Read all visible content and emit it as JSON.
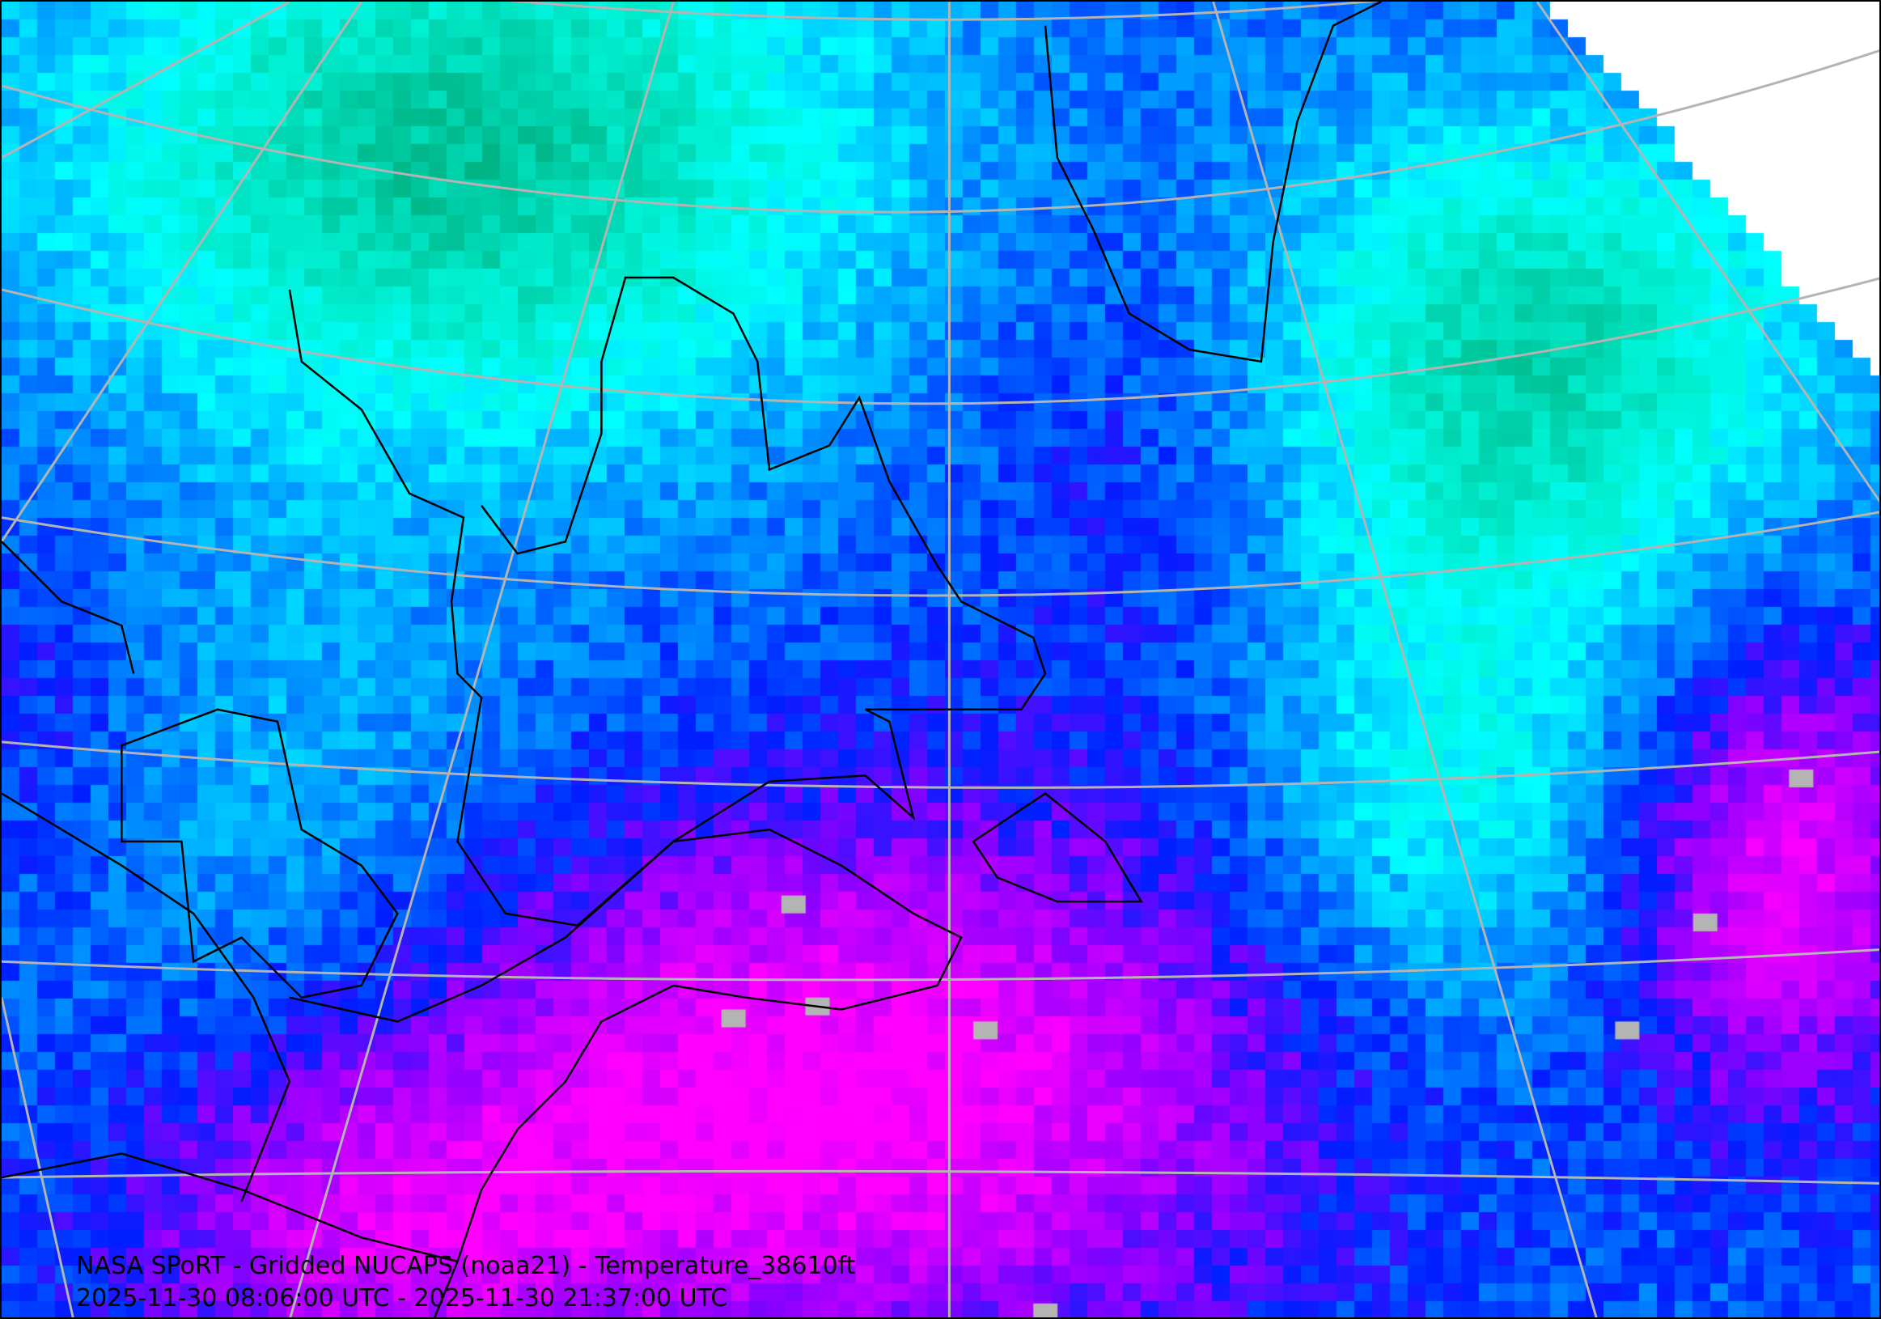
{
  "map": {
    "title": "NASA SPoRT - Gridded NUCAPS (noaa21) - Temperature_38610ft",
    "time_range": "2025-11-30 08:06:00 UTC - 2025-11-30 21:37:00 UTC",
    "colors": {
      "cold": "#00aa78",
      "cool": "#00ffff",
      "mid": "#0040ff",
      "warm": "#9000ff",
      "warmest": "#ff00ff",
      "no_data": "#ffffff",
      "graticule": "#b4b4b4",
      "coastline": "#000000"
    }
  }
}
